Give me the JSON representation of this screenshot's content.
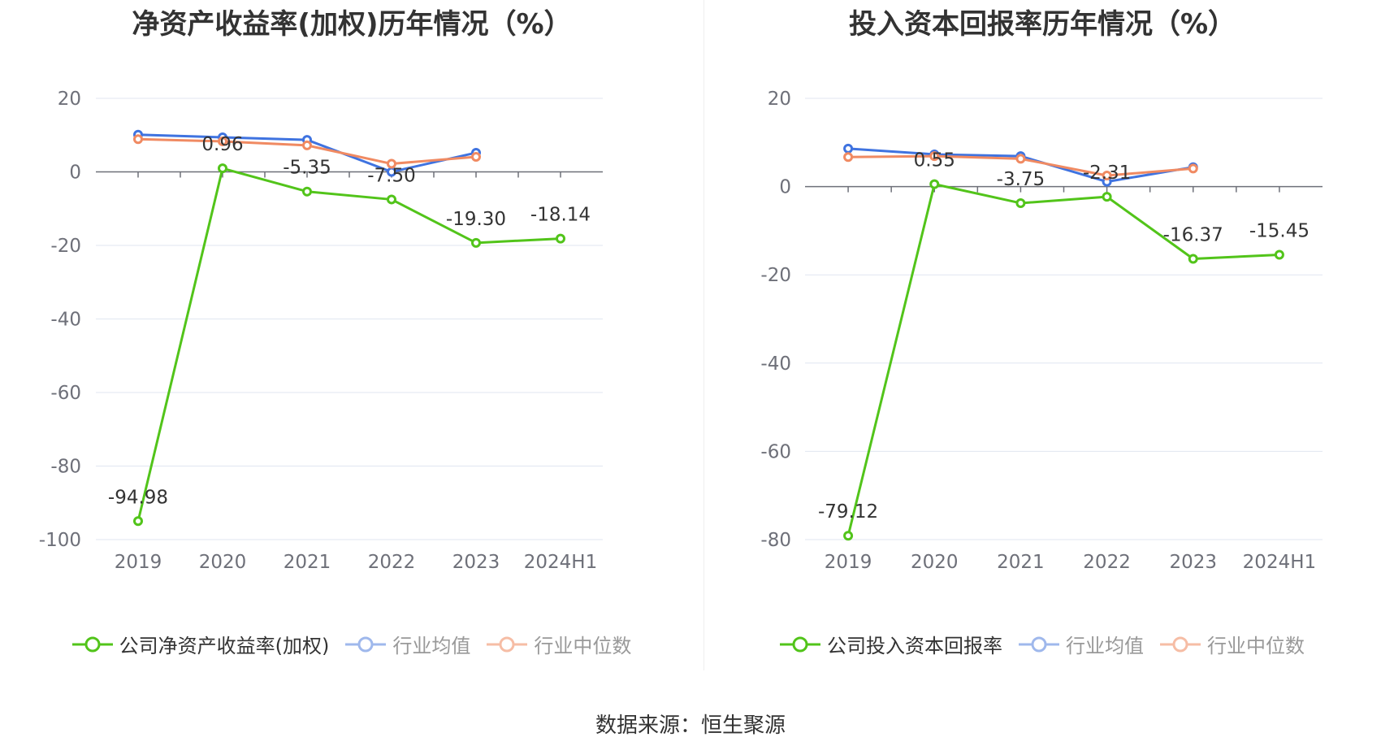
{
  "footer": "数据来源：恒生聚源",
  "colors": {
    "company": "#52c41a",
    "average": "#3f73e0",
    "median": "#f08a62",
    "grid": "#e0e6f1",
    "axis": "#6e7079",
    "text": "#333333"
  },
  "chart_data": [
    {
      "type": "line",
      "title": "净资产收益率(加权)历年情况（%）",
      "categories": [
        "2019",
        "2020",
        "2021",
        "2022",
        "2023",
        "2024H1"
      ],
      "ylim": [
        -100,
        20
      ],
      "yticks": [
        20,
        0,
        -20,
        -40,
        -60,
        -80,
        -100
      ],
      "grid": true,
      "legend_position": "bottom",
      "series": [
        {
          "name": "公司净资产收益率(加权)",
          "values": [
            -94.98,
            0.96,
            -5.35,
            -7.5,
            -19.3,
            -18.14
          ],
          "labels": [
            "-94.98",
            "0.96",
            "-5.35",
            "-7.50",
            "-19.30",
            "-18.14"
          ]
        },
        {
          "name": "行业均值",
          "values": [
            10.1,
            9.4,
            8.7,
            0.0,
            5.2,
            null
          ]
        },
        {
          "name": "行业中位数",
          "values": [
            8.9,
            8.3,
            7.2,
            2.2,
            4.1,
            null
          ]
        }
      ]
    },
    {
      "type": "line",
      "title": "投入资本回报率历年情况（%）",
      "categories": [
        "2019",
        "2020",
        "2021",
        "2022",
        "2023",
        "2024H1"
      ],
      "ylim": [
        -80,
        20
      ],
      "yticks": [
        20,
        0,
        -20,
        -40,
        -60,
        -80
      ],
      "grid": true,
      "legend_position": "bottom",
      "series": [
        {
          "name": "公司投入资本回报率",
          "values": [
            -79.12,
            0.55,
            -3.75,
            -2.31,
            -16.37,
            -15.45
          ],
          "labels": [
            "-79.12",
            "0.55",
            "-3.75",
            "-2.31",
            "-16.37",
            "-15.45"
          ]
        },
        {
          "name": "行业均值",
          "values": [
            8.6,
            7.3,
            6.9,
            1.1,
            4.4,
            null
          ]
        },
        {
          "name": "行业中位数",
          "values": [
            6.7,
            6.9,
            6.3,
            2.5,
            4.1,
            null
          ]
        }
      ]
    }
  ]
}
